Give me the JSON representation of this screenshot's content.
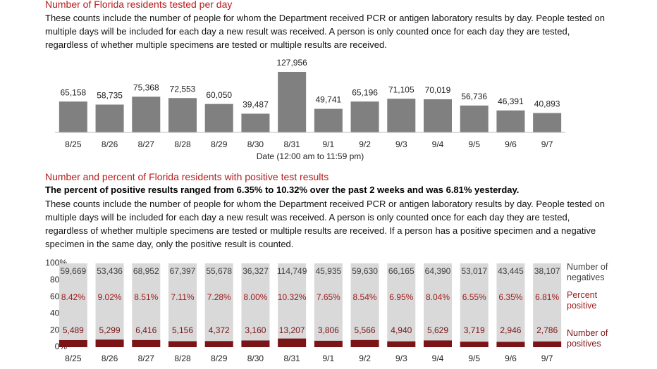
{
  "chart_data": [
    {
      "type": "bar",
      "title": "Number of Florida residents tested per day",
      "subtitle": "These counts include the number of people for whom the Department received PCR or antigen laboratory results by day. People tested on multiple days will be included for each day a new result was received. A person is only counted once for each day they are tested, regardless of whether multiple specimens are tested or multiple results are received.",
      "xlabel": "Date (12:00 am to 11:59 pm)",
      "categories": [
        "8/25",
        "8/26",
        "8/27",
        "8/28",
        "8/29",
        "8/30",
        "8/31",
        "9/1",
        "9/2",
        "9/3",
        "9/4",
        "9/5",
        "9/6",
        "9/7"
      ],
      "values": [
        65158,
        58735,
        75368,
        72553,
        60050,
        39487,
        127956,
        49741,
        65196,
        71105,
        70019,
        56736,
        46391,
        40893
      ],
      "value_labels": [
        "65,158",
        "58,735",
        "75,368",
        "72,553",
        "60,050",
        "39,487",
        "127,956",
        "49,741",
        "65,196",
        "71,105",
        "70,019",
        "56,736",
        "46,391",
        "40,893"
      ],
      "color": "#808080"
    },
    {
      "type": "percent_bar",
      "title": "Number and percent of Florida residents with positive test results",
      "subtitle": "The percent of positive results ranged from 6.35% to 10.32% over the past 2 weeks and was 6.81% yesterday.",
      "note": "These counts include the number of people for whom the Department received PCR or antigen laboratory results by day. People tested on multiple days will be included for each day a new result was received. A person is only counted once for each day they are tested, regardless of whether multiple specimens are tested or multiple results are received. If a person has a positive specimen and a negative specimen in the same day, only the positive result is counted.",
      "categories": [
        "8/25",
        "8/26",
        "8/27",
        "8/28",
        "8/29",
        "8/30",
        "8/31",
        "9/1",
        "9/2",
        "9/3",
        "9/4",
        "9/5",
        "9/6",
        "9/7"
      ],
      "ylim": [
        0,
        100
      ],
      "yticks": [
        {
          "value": 0,
          "label": "0%"
        },
        {
          "value": 20,
          "label": "20%"
        },
        {
          "value": 40,
          "label": "40%"
        },
        {
          "value": 60,
          "label": "60%"
        },
        {
          "value": 80,
          "label": "80%"
        },
        {
          "value": 100,
          "label": "100%"
        }
      ],
      "background_color": "#d9d9d9",
      "series": [
        {
          "name": "Number of negatives",
          "color": "#404040",
          "values": [
            59669,
            53436,
            68952,
            67397,
            55678,
            36327,
            114749,
            45935,
            59630,
            66165,
            64390,
            53017,
            43445,
            38107
          ],
          "value_labels": [
            "59,669",
            "53,436",
            "68,952",
            "67,397",
            "55,678",
            "36,327",
            "114,749",
            "45,935",
            "59,630",
            "66,165",
            "64,390",
            "53,017",
            "43,445",
            "38,107"
          ]
        },
        {
          "name": "Percent positive",
          "color": "#a01c1c",
          "values": [
            8.42,
            9.02,
            8.51,
            7.11,
            7.28,
            8.0,
            10.32,
            7.65,
            8.54,
            6.95,
            8.04,
            6.55,
            6.35,
            6.81
          ],
          "value_labels": [
            "8.42%",
            "9.02%",
            "8.51%",
            "7.11%",
            "7.28%",
            "8.00%",
            "10.32%",
            "7.65%",
            "8.54%",
            "6.95%",
            "8.04%",
            "6.55%",
            "6.35%",
            "6.81%"
          ]
        },
        {
          "name": "Number of positives",
          "color": "#7b1416",
          "values": [
            5489,
            5299,
            6416,
            5156,
            4372,
            3160,
            13207,
            3806,
            5566,
            4940,
            5629,
            3719,
            2946,
            2786
          ],
          "value_labels": [
            "5,489",
            "5,299",
            "6,416",
            "5,156",
            "4,372",
            "3,160",
            "13,207",
            "3,806",
            "5,566",
            "4,940",
            "5,629",
            "3,719",
            "2,946",
            "2,786"
          ]
        }
      ]
    }
  ]
}
